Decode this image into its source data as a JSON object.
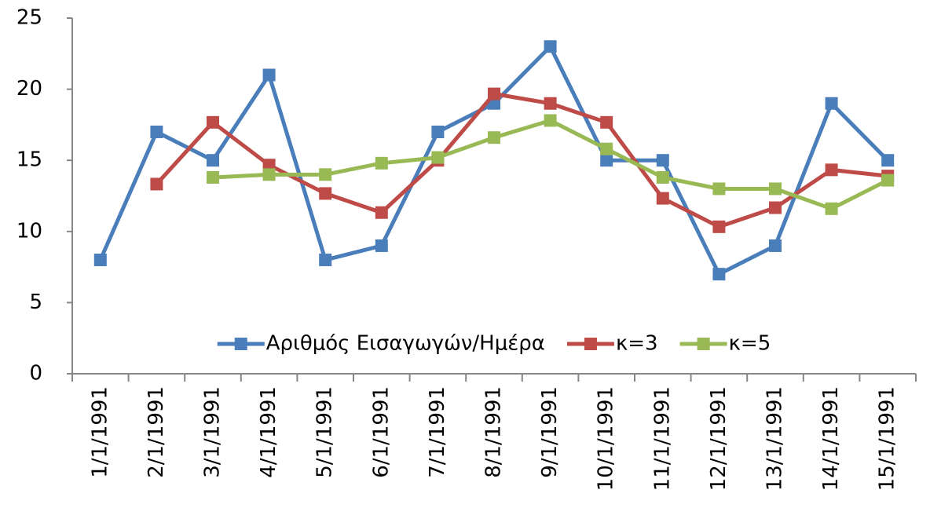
{
  "chart_data": {
    "type": "line",
    "categories": [
      "1/1/1991",
      "2/1/1991",
      "3/1/1991",
      "4/1/1991",
      "5/1/1991",
      "6/1/1991",
      "7/1/1991",
      "8/1/1991",
      "9/1/1991",
      "10/1/1991",
      "11/1/1991",
      "12/1/1991",
      "13/1/1991",
      "14/1/1991",
      "15/1/1991"
    ],
    "series": [
      {
        "name": "Αριθμός Εισαγωγών/Ημέρα",
        "color": "#4a7ebb",
        "values": [
          8,
          17,
          15,
          21,
          8,
          9,
          17,
          19,
          23,
          15,
          15,
          7,
          9,
          19,
          15
        ]
      },
      {
        "name": "κ=3",
        "color": "#be4b48",
        "values": [
          null,
          13.33,
          17.67,
          14.67,
          12.67,
          11.33,
          15,
          19.67,
          19,
          17.67,
          12.33,
          10.33,
          11.67,
          14.33,
          13.9
        ]
      },
      {
        "name": "κ=5",
        "color": "#98b954",
        "values": [
          null,
          null,
          13.8,
          14,
          14,
          14.8,
          15.2,
          16.6,
          17.8,
          15.8,
          13.8,
          13,
          13,
          11.6,
          13.6
        ]
      }
    ],
    "ylim": [
      0,
      25
    ],
    "yticks": [
      0,
      5,
      10,
      15,
      20,
      25
    ],
    "grid": false,
    "legend": "bottom"
  }
}
